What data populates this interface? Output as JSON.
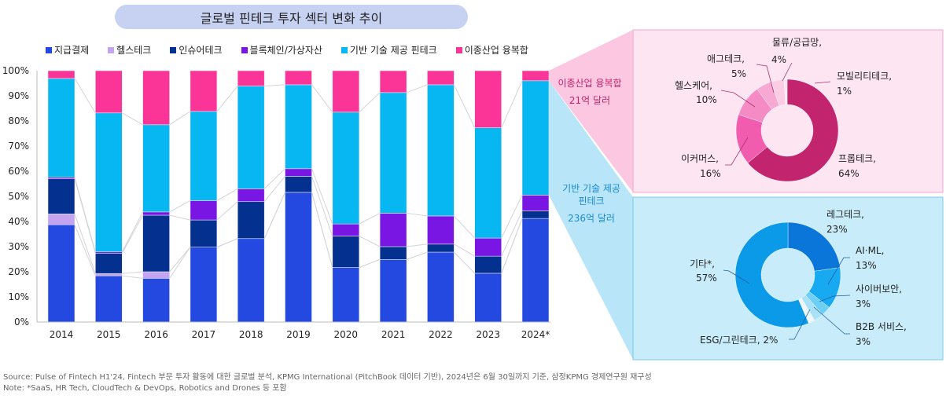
{
  "title": "글로벌 핀테크 투자 섹터 변화 추이",
  "legend": [
    {
      "label": "지급결제",
      "color": "#2349e0"
    },
    {
      "label": "헬스테크",
      "color": "#c4a3f0"
    },
    {
      "label": "인슈어테크",
      "color": "#04318f"
    },
    {
      "label": "블록체인/가상자산",
      "color": "#7a16e3"
    },
    {
      "label": "기반 기술 제공 핀테크",
      "color": "#07b7f2"
    },
    {
      "label": "이종산업 융복합",
      "color": "#fa3597"
    }
  ],
  "callouts": {
    "convergence": {
      "line1": "이종산업 융복합",
      "line2": "21억 달러",
      "color": "#c2246e"
    },
    "infra": {
      "line1": "기반 기술 제공",
      "line2": "핀테크",
      "line3": "236억 달러",
      "color": "#1a8ad4"
    }
  },
  "chart_data": [
    {
      "type": "bar",
      "stacked": true,
      "normalized": true,
      "title": "글로벌 핀테크 투자 섹터 변화 추이",
      "categories": [
        "2014",
        "2015",
        "2016",
        "2017",
        "2018",
        "2019",
        "2020",
        "2021",
        "2022",
        "2023",
        "2024*"
      ],
      "yticks": [
        "0%",
        "10%",
        "20%",
        "30%",
        "40%",
        "50%",
        "60%",
        "70%",
        "80%",
        "90%",
        "100%"
      ],
      "ylim": [
        0,
        100
      ],
      "xlabel": "",
      "ylabel": "",
      "grid": false,
      "legend_position": "top",
      "series": [
        {
          "name": "지급결제",
          "color": "#2349e0",
          "values": [
            38.7,
            18.4,
            17.4,
            29.8,
            33.2,
            51.6,
            21.7,
            24.9,
            27.8,
            19.4,
            41.2
          ]
        },
        {
          "name": "헬스테크",
          "color": "#c4a3f0",
          "values": [
            4.3,
            0.9,
            2.6,
            0,
            0,
            0,
            0,
            0,
            0,
            0,
            0
          ]
        },
        {
          "name": "인슈어테크",
          "color": "#04318f",
          "values": [
            14.0,
            8.0,
            22.5,
            10.8,
            14.7,
            6.4,
            12.5,
            5.1,
            3.2,
            6.8,
            3.0
          ]
        },
        {
          "name": "블록체인/가상자산",
          "color": "#7a16e3",
          "values": [
            0.6,
            0.6,
            1.3,
            7.7,
            5.1,
            3.0,
            4.8,
            13.3,
            11.2,
            7.2,
            6.3
          ]
        },
        {
          "name": "기반 기술 제공 핀테크",
          "color": "#07b7f2",
          "values": [
            39.3,
            55.3,
            34.7,
            35.5,
            40.9,
            33.4,
            44.5,
            48.0,
            52.2,
            43.9,
            45.5
          ]
        },
        {
          "name": "이종산업 융복합",
          "color": "#fa3597",
          "values": [
            3.1,
            16.8,
            21.5,
            16.2,
            6.1,
            5.6,
            16.5,
            8.7,
            5.6,
            22.7,
            4.0
          ]
        }
      ]
    },
    {
      "type": "pie",
      "donut": true,
      "title": "이종산업 융복합 21억 달러",
      "slices": [
        {
          "label": "프롭테크",
          "value": 64,
          "color": "#c2246e"
        },
        {
          "label": "이커머스",
          "value": 16,
          "color": "#f25cae"
        },
        {
          "label": "헬스케어",
          "value": 10,
          "color": "#f58bc4"
        },
        {
          "label": "애그테크",
          "value": 5,
          "color": "#f8a9d3"
        },
        {
          "label": "물류/공급망",
          "value": 4,
          "color": "#fbcde4"
        },
        {
          "label": "모빌리티테크",
          "value": 1,
          "color": "#fde6f1"
        }
      ]
    },
    {
      "type": "pie",
      "donut": true,
      "title": "기반 기술 제공 핀테크 236억 달러",
      "slices": [
        {
          "label": "레그테크",
          "value": 23,
          "color": "#0a76d9"
        },
        {
          "label": "AI·ML",
          "value": 13,
          "color": "#17aaf0"
        },
        {
          "label": "사이버보안",
          "value": 3,
          "color": "#6ecff5"
        },
        {
          "label": "B2B 서비스",
          "value": 3,
          "color": "#a9e1f8"
        },
        {
          "label": "ESG/그린테크",
          "value": 2,
          "color": "#eef8fc"
        },
        {
          "label": "기타*",
          "value": 57,
          "color": "#0b9ae8"
        }
      ]
    }
  ],
  "donut_labels": {
    "pink": [
      {
        "name": "물류/공급망,",
        "pct": "4%"
      },
      {
        "name": "애그테크,",
        "pct": "5%"
      },
      {
        "name": "모빌리티테크,",
        "pct": "1%"
      },
      {
        "name": "헬스케어,",
        "pct": "10%"
      },
      {
        "name": "이커머스,",
        "pct": "16%"
      },
      {
        "name": "프롭테크,",
        "pct": "64%"
      }
    ],
    "blue": [
      {
        "name": "레그테크,",
        "pct": "23%"
      },
      {
        "name": "AI·ML,",
        "pct": "13%"
      },
      {
        "name": "기타*,",
        "pct": "57%"
      },
      {
        "name": "사이버보안,",
        "pct": "3%"
      },
      {
        "name": "B2B 서비스,",
        "pct": "3%"
      },
      {
        "name": "ESG/그린테크, 2%",
        "pct": ""
      }
    ]
  },
  "footer": {
    "source": "Source: Pulse of Fintech H1'24, Fintech 부문 투자 활동에 대한 글로벌 분석, KPMG International (PitchBook 데이터 기반), 2024년은 6월 30일까지 기준, 삼정KPMG 경제연구원 재구성",
    "note": "Note: *SaaS, HR Tech, CloudTech & DevOps, Robotics and Drones 등 포함"
  }
}
